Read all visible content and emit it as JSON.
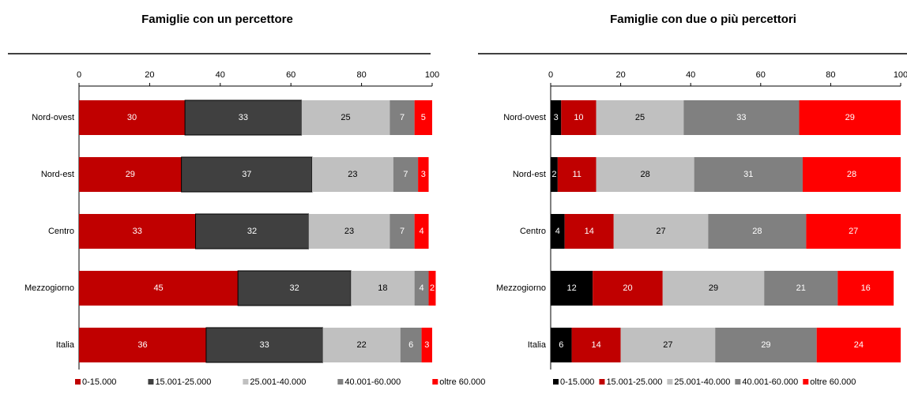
{
  "chart_data": [
    {
      "type": "stacked-barh",
      "title": "Famiglie con un percettore",
      "categories": [
        "Nord-ovest",
        "Nord-est",
        "Centro",
        "Mezzogiorno",
        "Italia"
      ],
      "series": [
        {
          "name": "0-15.000",
          "color": "#c00000",
          "values": [
            30,
            29,
            33,
            45,
            36
          ]
        },
        {
          "name": "15.001-25.000",
          "color": "#404040",
          "values": [
            33,
            37,
            32,
            32,
            33
          ]
        },
        {
          "name": "25.001-40.000",
          "color": "#c0c0c0",
          "values": [
            25,
            23,
            23,
            18,
            22
          ]
        },
        {
          "name": "40.001-60.000",
          "color": "#808080",
          "values": [
            7,
            7,
            7,
            4,
            6
          ]
        },
        {
          "name": "oltre 60.000",
          "color": "#ff0000",
          "values": [
            5,
            3,
            4,
            2,
            3
          ]
        }
      ],
      "xlim": [
        0,
        100
      ],
      "xticks": [
        0,
        20,
        40,
        60,
        80,
        100
      ]
    },
    {
      "type": "stacked-barh",
      "title": "Famiglie con due o più percettori",
      "categories": [
        "Nord-ovest",
        "Nord-est",
        "Centro",
        "Mezzogiorno",
        "Italia"
      ],
      "series": [
        {
          "name": "0-15.000",
          "color": "#000000",
          "values": [
            3,
            2,
            4,
            12,
            6
          ]
        },
        {
          "name": "15.001-25.000",
          "color": "#c00000",
          "values": [
            10,
            11,
            14,
            20,
            14
          ]
        },
        {
          "name": "25.001-40.000",
          "color": "#c0c0c0",
          "values": [
            25,
            28,
            27,
            29,
            27
          ]
        },
        {
          "name": "40.001-60.000",
          "color": "#808080",
          "values": [
            33,
            31,
            28,
            21,
            29
          ]
        },
        {
          "name": "oltre 60.000",
          "color": "#ff0000",
          "values": [
            29,
            28,
            27,
            16,
            24
          ]
        }
      ],
      "xlim": [
        0,
        100
      ],
      "xticks": [
        0,
        20,
        40,
        60,
        80,
        100
      ]
    }
  ]
}
